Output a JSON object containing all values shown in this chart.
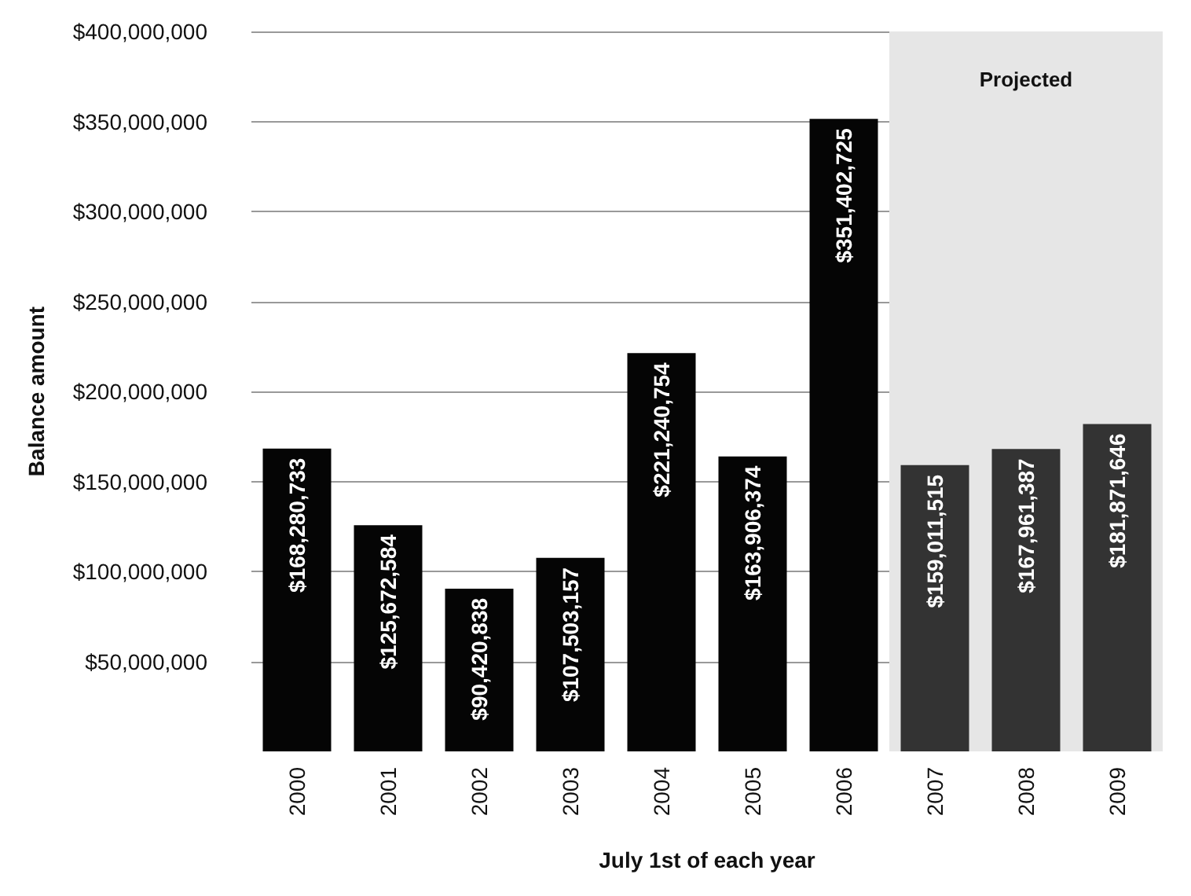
{
  "chart_data": {
    "type": "bar",
    "xlabel": "July 1st of each year",
    "ylabel": "Balance amount",
    "categories": [
      "2000",
      "2001",
      "2002",
      "2003",
      "2004",
      "2005",
      "2006",
      "2007",
      "2008",
      "2009"
    ],
    "values": [
      168280733,
      125672584,
      90420838,
      107503157,
      221240754,
      163906374,
      351402725,
      159011515,
      167961387,
      181871646
    ],
    "value_labels": [
      "$168,280,733",
      "$125,672,584",
      "$90,420,838",
      "$107,503,157",
      "$221,240,754",
      "$163,906,374",
      "$351,402,725",
      "$159,011,515",
      "$167,961,387",
      "$181,871,646"
    ],
    "colors": [
      "#050505",
      "#050505",
      "#050505",
      "#050505",
      "#050505",
      "#050505",
      "#050505",
      "#333333",
      "#333333",
      "#333333"
    ],
    "ylim": [
      0,
      400000000
    ],
    "yticks": [
      {
        "value": 50000000,
        "label": "$50,000,000"
      },
      {
        "value": 100000000,
        "label": "$100,000,000"
      },
      {
        "value": 150000000,
        "label": "$150,000,000"
      },
      {
        "value": 200000000,
        "label": "$200,000,000"
      },
      {
        "value": 250000000,
        "label": "$250,000,000"
      },
      {
        "value": 300000000,
        "label": "$300,000,000"
      },
      {
        "value": 350000000,
        "label": "$350,000,000"
      },
      {
        "value": 400000000,
        "label": "$400,000,000"
      }
    ],
    "bands": [
      {
        "axis": "x",
        "from": "2007",
        "to": "2009",
        "label": "Projected",
        "color": "#e6e6e6"
      }
    ],
    "grid": "y"
  }
}
